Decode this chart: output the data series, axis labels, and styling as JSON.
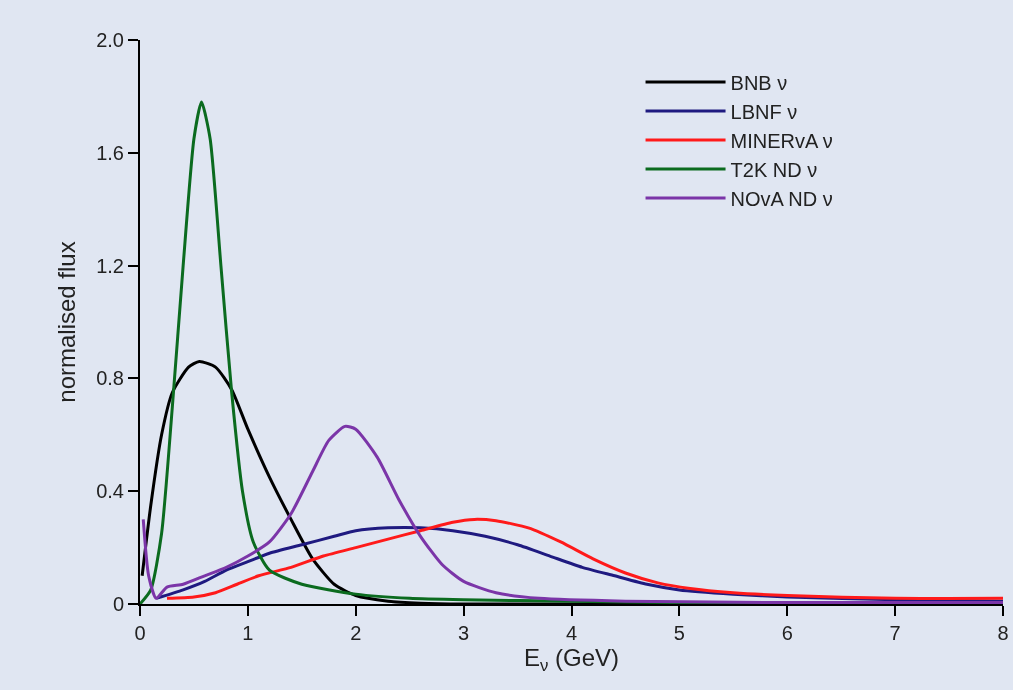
{
  "chart_data": {
    "type": "line",
    "xlabel": "E$_{ν}$ (GeV)",
    "ylabel": "normalised flux",
    "xlim": [
      0,
      8
    ],
    "xticks": [
      0,
      1,
      2,
      3,
      4,
      5,
      6,
      7,
      8
    ],
    "ylim": [
      0,
      2
    ],
    "yticks": [
      0,
      0.4,
      0.8,
      1.2,
      1.6,
      {
        "value": 2,
        "label": "2.0"
      }
    ],
    "grid": false,
    "legend": "top right",
    "marker": "none",
    "line_style": "solid",
    "series": [
      {
        "name": "BNB ν",
        "color": "#000000",
        "x": [
          0.02,
          0.1,
          0.2,
          0.3,
          0.45,
          0.55,
          0.7,
          0.85,
          1.0,
          1.2,
          1.4,
          1.6,
          1.8,
          2.0,
          2.3,
          2.6,
          3,
          8
        ],
        "values": [
          0.1,
          0.35,
          0.6,
          0.75,
          0.84,
          0.86,
          0.84,
          0.76,
          0.62,
          0.45,
          0.3,
          0.16,
          0.07,
          0.03,
          0.01,
          0.003,
          0,
          0
        ]
      },
      {
        "name": "LBNF ν",
        "color": "#1f1a80",
        "x": [
          0.15,
          0.4,
          0.6,
          0.8,
          1.0,
          1.2,
          1.5,
          1.8,
          2.0,
          2.3,
          2.6,
          2.9,
          3.2,
          3.5,
          3.8,
          4.1,
          4.4,
          4.7,
          5.0,
          5.5,
          6,
          7,
          8
        ],
        "values": [
          0.02,
          0.05,
          0.08,
          0.12,
          0.15,
          0.18,
          0.21,
          0.24,
          0.26,
          0.27,
          0.27,
          0.26,
          0.24,
          0.21,
          0.17,
          0.13,
          0.1,
          0.07,
          0.05,
          0.035,
          0.025,
          0.015,
          0.01
        ]
      },
      {
        "name": "MINERvA ν",
        "color": "#ff1a1a",
        "x": [
          0.25,
          0.5,
          0.7,
          0.9,
          1.1,
          1.4,
          1.7,
          2.0,
          2.3,
          2.6,
          2.9,
          3.1,
          3.3,
          3.6,
          3.9,
          4.2,
          4.5,
          4.8,
          5.1,
          5.5,
          6,
          7,
          8
        ],
        "values": [
          0.02,
          0.025,
          0.04,
          0.07,
          0.1,
          0.13,
          0.17,
          0.2,
          0.23,
          0.26,
          0.29,
          0.3,
          0.295,
          0.27,
          0.22,
          0.16,
          0.11,
          0.075,
          0.055,
          0.04,
          0.03,
          0.02,
          0.02
        ]
      },
      {
        "name": "T2K ND ν",
        "color": "#0b6b1f",
        "x": [
          0.0,
          0.1,
          0.2,
          0.3,
          0.4,
          0.5,
          0.57,
          0.65,
          0.75,
          0.85,
          0.95,
          1.05,
          1.2,
          1.5,
          2.0,
          2.5,
          3,
          4,
          5,
          8
        ],
        "values": [
          0,
          0.05,
          0.25,
          0.7,
          1.2,
          1.65,
          1.78,
          1.65,
          1.2,
          0.75,
          0.4,
          0.22,
          0.12,
          0.07,
          0.035,
          0.02,
          0.015,
          0.01,
          0.005,
          0
        ]
      },
      {
        "name": "NOvA ND ν",
        "color": "#7b35a8",
        "x": [
          0.03,
          0.08,
          0.15,
          0.25,
          0.4,
          0.6,
          0.8,
          1.0,
          1.2,
          1.4,
          1.6,
          1.75,
          1.9,
          2.0,
          2.2,
          2.4,
          2.6,
          2.8,
          3.0,
          3.3,
          3.7,
          4.5,
          6,
          8
        ],
        "values": [
          0.3,
          0.1,
          0.02,
          0.06,
          0.07,
          0.1,
          0.13,
          0.17,
          0.22,
          0.32,
          0.47,
          0.58,
          0.63,
          0.62,
          0.52,
          0.37,
          0.24,
          0.14,
          0.08,
          0.04,
          0.02,
          0.01,
          0.005,
          0.005
        ]
      }
    ]
  }
}
